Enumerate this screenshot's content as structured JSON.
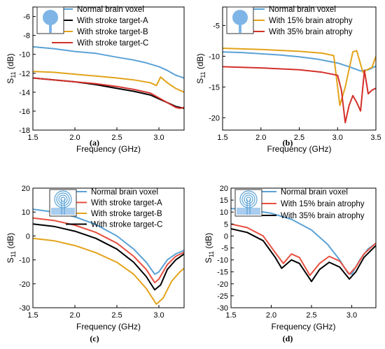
{
  "chart_data": [
    {
      "panel": "(a)",
      "type": "line",
      "xlabel": "Frequency (GHz)",
      "ylabel_main": "S",
      "ylabel_sub": "11",
      "ylabel_unit": " (dB)",
      "xlim": [
        1.5,
        3.3
      ],
      "ylim": [
        -18,
        -5
      ],
      "xticks": [
        1.5,
        2.0,
        2.5,
        3.0
      ],
      "xtick_labels": [
        "1.5",
        "2.0",
        "2.5",
        "3.0"
      ],
      "yticks": [
        -18,
        -16,
        -14,
        -12,
        -10,
        -8,
        -6
      ],
      "ytick_labels": [
        "-18",
        "-16",
        "-14",
        "-12",
        "-10",
        "-8",
        "-6"
      ],
      "legend_position": "top",
      "inset_icon": "patch-antenna-circle",
      "series": [
        {
          "name": "Normal brain voxel",
          "color": "#5aa2d6",
          "x": [
            1.5,
            1.75,
            2.0,
            2.25,
            2.5,
            2.7,
            2.85,
            3.0,
            3.1,
            3.2,
            3.3
          ],
          "y": [
            -9.2,
            -9.4,
            -9.7,
            -9.9,
            -10.3,
            -10.6,
            -10.9,
            -11.3,
            -11.7,
            -12.2,
            -12.5
          ]
        },
        {
          "name": "With stroke target-A",
          "color": "#000000",
          "x": [
            1.5,
            1.75,
            2.0,
            2.25,
            2.5,
            2.7,
            2.9,
            3.0,
            3.1,
            3.2,
            3.3
          ],
          "y": [
            -12.5,
            -12.7,
            -12.9,
            -13.2,
            -13.6,
            -13.9,
            -14.3,
            -14.7,
            -15.1,
            -15.5,
            -15.7
          ]
        },
        {
          "name": "With stroke target-B",
          "color": "#e3a31b",
          "x": [
            1.5,
            1.75,
            2.0,
            2.25,
            2.5,
            2.7,
            2.9,
            2.97,
            3.02,
            3.1,
            3.2,
            3.3
          ],
          "y": [
            -11.8,
            -11.9,
            -12.1,
            -12.3,
            -12.5,
            -12.7,
            -13.0,
            -13.3,
            -12.4,
            -13.0,
            -13.6,
            -14.0
          ]
        },
        {
          "name": "With stroke target-C",
          "color": "#d3302a",
          "x": [
            1.5,
            1.75,
            2.0,
            2.25,
            2.5,
            2.7,
            2.9,
            3.0,
            3.1,
            3.2,
            3.25,
            3.3
          ],
          "y": [
            -12.5,
            -12.7,
            -12.9,
            -13.1,
            -13.4,
            -13.7,
            -14.1,
            -14.6,
            -15.1,
            -15.6,
            -15.7,
            -15.6
          ]
        }
      ]
    },
    {
      "panel": "(b)",
      "type": "line",
      "xlabel": "Frequency (GHz)",
      "ylabel_main": "S",
      "ylabel_sub": "11",
      "ylabel_unit": " (dB)",
      "xlim": [
        1.5,
        3.5
      ],
      "ylim": [
        -22,
        -2
      ],
      "xticks": [
        1.5,
        2.0,
        2.5,
        3.0,
        3.5
      ],
      "xtick_labels": [
        "1.5",
        "2.0",
        "2.5",
        "3.0",
        "3.5"
      ],
      "yticks": [
        -20,
        -15,
        -10,
        -5
      ],
      "ytick_labels": [
        "-20",
        "-15",
        "-10",
        "-5"
      ],
      "legend_position": "top",
      "inset_icon": "patch-antenna-circle",
      "series": [
        {
          "name": "Normal brain voxel",
          "color": "#5aa2d6",
          "x": [
            1.5,
            1.75,
            2.0,
            2.25,
            2.5,
            2.75,
            3.0,
            3.15,
            3.3,
            3.4,
            3.5
          ],
          "y": [
            -9.3,
            -9.4,
            -9.6,
            -9.8,
            -10.1,
            -10.5,
            -11.1,
            -11.7,
            -12.4,
            -12.2,
            -11.6
          ]
        },
        {
          "name": "With 15% brain atrophy",
          "color": "#e3a31b",
          "x": [
            1.5,
            2.0,
            2.5,
            2.8,
            2.95,
            3.03,
            3.1,
            3.2,
            3.25,
            3.33,
            3.4,
            3.45,
            3.5
          ],
          "y": [
            -8.7,
            -8.9,
            -9.2,
            -9.5,
            -9.9,
            -18.0,
            -15.0,
            -9.3,
            -9.1,
            -12.6,
            -12.1,
            -11.8,
            -10.0
          ]
        },
        {
          "name": "With 35% brain atrophy",
          "color": "#d3302a",
          "x": [
            1.5,
            2.0,
            2.5,
            2.8,
            3.0,
            3.05,
            3.1,
            3.15,
            3.2,
            3.25,
            3.3,
            3.35,
            3.4,
            3.45,
            3.5
          ],
          "y": [
            -11.7,
            -11.9,
            -12.2,
            -12.6,
            -13.1,
            -15.5,
            -20.8,
            -18.0,
            -16.4,
            -17.5,
            -18.9,
            -12.3,
            -16.1,
            -15.5,
            -15.2
          ]
        }
      ]
    },
    {
      "panel": "(c)",
      "type": "line",
      "xlabel": "Frequency (GHz)",
      "ylabel_main": "S",
      "ylabel_sub": "11",
      "ylabel_unit": " (dB)",
      "xlim": [
        1.5,
        3.3
      ],
      "ylim": [
        -30,
        20
      ],
      "xticks": [
        1.5,
        2.0,
        2.5,
        3.0
      ],
      "xtick_labels": [
        "1.5",
        "2.0",
        "2.5",
        "3.0"
      ],
      "yticks": [
        -30,
        -20,
        -10,
        0,
        10,
        20
      ],
      "ytick_labels": [
        "-30",
        "-20",
        "-10",
        "0",
        "10",
        "20"
      ],
      "legend_position": "top",
      "inset_icon": "spiral-antenna",
      "series": [
        {
          "name": "Normal brain voxel",
          "color": "#5aa2d6",
          "x": [
            1.5,
            1.75,
            2.0,
            2.25,
            2.5,
            2.7,
            2.85,
            2.95,
            3.0,
            3.1,
            3.2,
            3.3
          ],
          "y": [
            11.2,
            10.0,
            8.0,
            4.8,
            0.0,
            -5.5,
            -11.0,
            -16.0,
            -15.0,
            -10.0,
            -7.5,
            -6.0
          ]
        },
        {
          "name": "With stroke target-A",
          "color": "#e8503f",
          "x": [
            1.5,
            1.75,
            2.0,
            2.25,
            2.5,
            2.7,
            2.85,
            2.95,
            3.0,
            3.1,
            3.2,
            3.3
          ],
          "y": [
            7.5,
            6.5,
            4.5,
            1.5,
            -3.0,
            -8.5,
            -14.0,
            -19.5,
            -18.0,
            -12.0,
            -8.5,
            -6.8
          ]
        },
        {
          "name": "With stroke target-B",
          "color": "#e3a31b",
          "x": [
            1.5,
            1.75,
            2.0,
            2.25,
            2.5,
            2.7,
            2.85,
            2.97,
            3.05,
            3.15,
            3.25,
            3.3
          ],
          "y": [
            -1.0,
            -2.0,
            -4.0,
            -7.0,
            -11.0,
            -16.0,
            -22.0,
            -28.5,
            -26.0,
            -19.0,
            -15.0,
            -13.5
          ]
        },
        {
          "name": "With stroke target-C",
          "color": "#000000",
          "x": [
            1.5,
            1.75,
            2.0,
            2.25,
            2.5,
            2.7,
            2.85,
            2.95,
            3.02,
            3.1,
            3.2,
            3.3
          ],
          "y": [
            5.0,
            4.0,
            2.0,
            -1.0,
            -5.5,
            -11.0,
            -17.0,
            -22.5,
            -20.5,
            -14.0,
            -10.0,
            -7.5
          ]
        }
      ]
    },
    {
      "panel": "(d)",
      "type": "line",
      "xlabel": "Frequency (GHz)",
      "ylabel_main": "S",
      "ylabel_sub": "11",
      "ylabel_unit": " (dB)",
      "xlim": [
        1.5,
        3.3
      ],
      "ylim": [
        -30,
        20
      ],
      "xticks": [
        1.5,
        2.0,
        2.5,
        3.0
      ],
      "xtick_labels": [
        "1.5",
        "2.0",
        "2.5",
        "3.0"
      ],
      "yticks": [
        -30,
        -25,
        -20,
        -15,
        -10,
        -5,
        0,
        5,
        10,
        15,
        20
      ],
      "ytick_labels": [
        "-30",
        "-25",
        "-20",
        "-15",
        "-10",
        "-5",
        "0",
        "5",
        "10",
        "15",
        "20"
      ],
      "legend_position": "top",
      "inset_icon": "spiral-antenna",
      "series": [
        {
          "name": "Normal brain voxel",
          "color": "#5aa2d6",
          "x": [
            1.5,
            1.75,
            2.0,
            2.25,
            2.5,
            2.7,
            2.85,
            2.95,
            3.0,
            3.1,
            3.2,
            3.3
          ],
          "y": [
            11.5,
            10.8,
            9.5,
            7.0,
            2.5,
            -3.5,
            -10.0,
            -15.5,
            -16.0,
            -10.0,
            -5.5,
            -3.0
          ]
        },
        {
          "name": "With 15% brain atrophy",
          "color": "#e8503f",
          "x": [
            1.5,
            1.7,
            1.9,
            2.05,
            2.15,
            2.25,
            2.35,
            2.48,
            2.6,
            2.72,
            2.85,
            2.97,
            3.05,
            3.15,
            3.3
          ],
          "y": [
            5.0,
            3.5,
            0.0,
            -7.0,
            -11.5,
            -7.5,
            -9.0,
            -16.5,
            -11.5,
            -8.5,
            -10.5,
            -16.0,
            -13.0,
            -7.5,
            -3.0
          ]
        },
        {
          "name": "With 35% brain atrophy",
          "color": "#000000",
          "x": [
            1.5,
            1.7,
            1.9,
            2.05,
            2.13,
            2.25,
            2.35,
            2.5,
            2.6,
            2.72,
            2.85,
            2.97,
            3.05,
            3.15,
            3.3
          ],
          "y": [
            3.0,
            1.5,
            -2.0,
            -9.0,
            -13.5,
            -10.0,
            -11.5,
            -19.0,
            -14.0,
            -11.0,
            -13.0,
            -18.0,
            -15.0,
            -9.0,
            -4.0
          ]
        }
      ]
    }
  ]
}
